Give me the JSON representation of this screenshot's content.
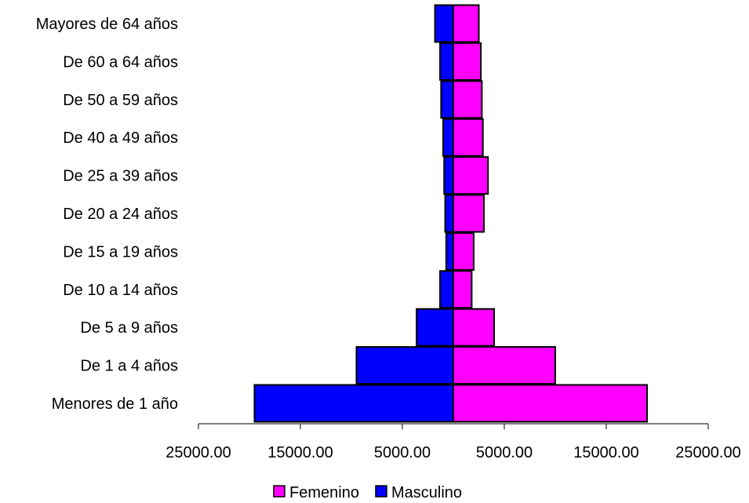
{
  "chart_data": {
    "type": "bar",
    "orientation": "horizontal",
    "layout": "population-pyramid",
    "categories": [
      "Menores de 1 año",
      "De 1 a 4 años",
      "De 5 a 9 años",
      "De 10 a 14 años",
      "De 15 a 19 años",
      "De 20 a 24 años",
      "De 25 a 39 años",
      "De 40 a 49 años",
      "De 50 a 59 años",
      "De 60 a 64 años",
      "Mayores de 64 años"
    ],
    "series": [
      {
        "name": "Femenino",
        "side": "right",
        "color": "#ff00ff",
        "values": [
          19000,
          10000,
          4000,
          1800,
          2000,
          3000,
          3400,
          2900,
          2800,
          2700,
          2500
        ]
      },
      {
        "name": "Masculino",
        "side": "left",
        "color": "#0000ff",
        "values": [
          19500,
          9500,
          3600,
          1300,
          700,
          800,
          900,
          1000,
          1200,
          1300,
          1800
        ]
      }
    ],
    "xlim": [
      -25000,
      25000
    ],
    "x_ticks": [
      -25000,
      -15000,
      -5000,
      5000,
      15000,
      25000
    ],
    "x_tick_labels": [
      "25000.00",
      "15000.00",
      "5000.00",
      "5000.00",
      "15000.00",
      "25000.00"
    ],
    "legend": {
      "placement": "bottom",
      "order": [
        "Femenino",
        "Masculino"
      ]
    },
    "grid": false,
    "title": "",
    "xlabel": "",
    "ylabel": ""
  }
}
